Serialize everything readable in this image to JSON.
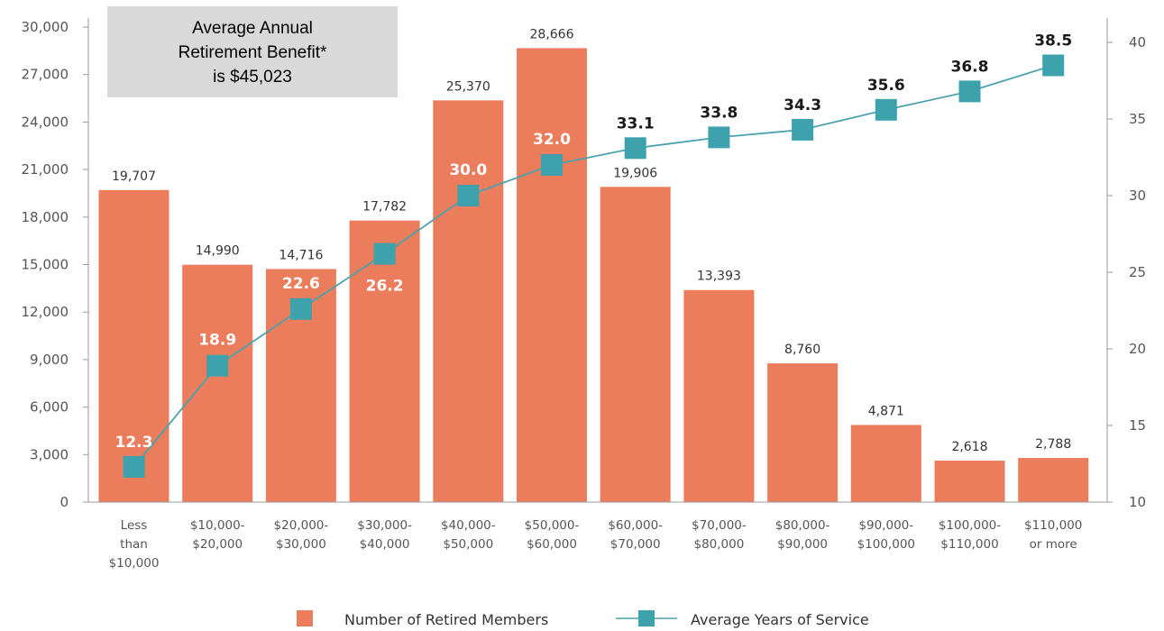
{
  "colors": {
    "bar": "#EB7C5C",
    "line": "#4BA3AD",
    "marker": "#3EA2AC",
    "axis": "#9A9A9A",
    "note_bg": "#D9D9D9",
    "label_light": "#FFFFFF",
    "label_dark": "#1A1A1A"
  },
  "note": {
    "lines": [
      "Average Annual",
      "Retirement Benefit*",
      "is $45,023"
    ]
  },
  "chart_data": {
    "type": "bar",
    "categories": [
      [
        "Less",
        "than",
        "$10,000"
      ],
      [
        "$10,000-",
        "$20,000"
      ],
      [
        "$20,000-",
        "$30,000"
      ],
      [
        "$30,000-",
        "$40,000"
      ],
      [
        "$40,000-",
        "$50,000"
      ],
      [
        "$50,000-",
        "$60,000"
      ],
      [
        "$60,000-",
        "$70,000"
      ],
      [
        "$70,000-",
        "$80,000"
      ],
      [
        "$80,000-",
        "$90,000"
      ],
      [
        "$90,000-",
        "$100,000"
      ],
      [
        "$100,000-",
        "$110,000"
      ],
      [
        "$110,000",
        "or more"
      ]
    ],
    "series": [
      {
        "name": "Number of Retired Members",
        "type": "bar",
        "axis": "left",
        "values": [
          19707,
          14990,
          14716,
          17782,
          25370,
          28666,
          19906,
          13393,
          8760,
          4871,
          2618,
          2788
        ],
        "labels": [
          "19,707",
          "14,990",
          "14,716",
          "17,782",
          "25,370",
          "28,666",
          "19,906",
          "13,393",
          "8,760",
          "4,871",
          "2,618",
          "2,788"
        ]
      },
      {
        "name": "Average Years of Service",
        "type": "line",
        "axis": "right",
        "values": [
          12.3,
          18.9,
          22.6,
          26.2,
          30.0,
          32.0,
          33.1,
          33.8,
          34.3,
          35.6,
          36.8,
          38.5
        ],
        "labels": [
          "12.3",
          "18.9",
          "22.6",
          "26.2",
          "30.0",
          "32.0",
          "33.1",
          "33.8",
          "34.3",
          "35.6",
          "36.8",
          "38.5"
        ],
        "label_on_bar": [
          true,
          true,
          true,
          true,
          true,
          true,
          false,
          false,
          false,
          false,
          false,
          false
        ]
      }
    ],
    "y_left": {
      "lim": [
        0,
        30000
      ],
      "ticks": [
        0,
        3000,
        6000,
        9000,
        12000,
        15000,
        18000,
        21000,
        24000,
        27000,
        30000
      ],
      "tick_labels": [
        "0",
        "3,000",
        "6,000",
        "9,000",
        "12,000",
        "15,000",
        "18,000",
        "21,000",
        "24,000",
        "27,000",
        "30,000"
      ]
    },
    "y_right": {
      "lim": [
        10,
        40
      ],
      "ticks": [
        10,
        15,
        20,
        25,
        30,
        35,
        40
      ],
      "tick_labels": [
        "10",
        "15",
        "20",
        "25",
        "30",
        "35",
        "40"
      ]
    },
    "legend": {
      "placement": "bottom-center",
      "items": [
        "Number of Retired Members",
        "Average Years of Service"
      ]
    },
    "grid": false
  }
}
